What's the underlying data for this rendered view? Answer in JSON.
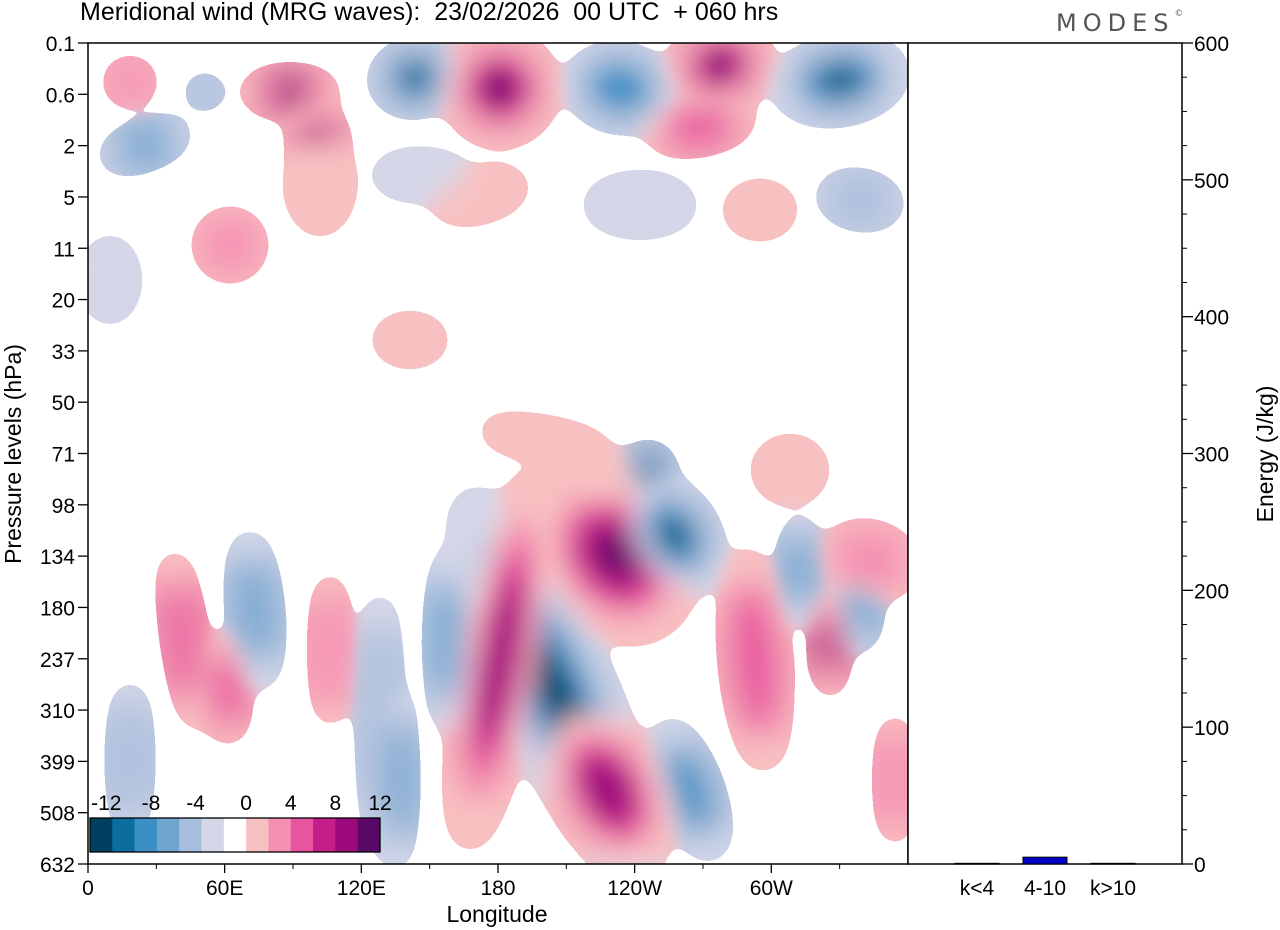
{
  "header": {
    "title": "Meridional wind (MRG waves):  23/02/2026  00 UTC  + 060 hrs",
    "logo": "MODES",
    "logo_mark": "©"
  },
  "chart_data": [
    {
      "type": "heatmap",
      "title": "Meridional wind (MRG waves)",
      "xlabel": "Longitude",
      "ylabel": "Pressure levels (hPa)",
      "x_ticks": [
        "0",
        "60E",
        "120E",
        "180",
        "120W",
        "60W"
      ],
      "x_range_deg_east": [
        0,
        360
      ],
      "y_ticks": [
        "0.1",
        "0.6",
        "2",
        "5",
        "11",
        "20",
        "33",
        "50",
        "71",
        "98",
        "134",
        "180",
        "237",
        "310",
        "399",
        "508",
        "632"
      ],
      "y_scale": "model levels, top 0.1 hPa to bottom 632 hPa",
      "colorbar": {
        "tick_labels": [
          "-12",
          "-8",
          "-4",
          "0",
          "4",
          "8",
          "12"
        ],
        "levels": [
          -14,
          -12,
          -10,
          -8,
          -6,
          -4,
          -2,
          2,
          4,
          6,
          8,
          10,
          12,
          14
        ],
        "colors": [
          "#003f5f",
          "#0a6e9e",
          "#3a8fc4",
          "#6fa6d0",
          "#a7bedc",
          "#d4d7e8",
          "#ffffff",
          "#f8c1c1",
          "#f58fb3",
          "#e8559e",
          "#c51d8a",
          "#9c0a7b",
          "#5a0868"
        ]
      },
      "features": [
        {
          "lon": 195,
          "level": "180-508",
          "value": -14,
          "desc": "strong negative column"
        },
        {
          "lon": 175,
          "level": "134-508",
          "value": 14,
          "desc": "strong positive column"
        },
        {
          "lon": 228,
          "level": "98-237",
          "value": 14
        },
        {
          "lon": 255,
          "level": "71-180",
          "value": -14
        },
        {
          "lon": 222,
          "level": "399-632",
          "value": 12
        },
        {
          "lon": 148,
          "level": "0.1-0.6",
          "value": -14
        },
        {
          "lon": 183,
          "level": "0.1-2",
          "value": 14
        },
        {
          "lon": 318,
          "level": "0.1-2",
          "value": -14
        },
        {
          "lon": 95,
          "level": "0.6",
          "value": 12
        }
      ]
    },
    {
      "type": "bar",
      "categories": [
        "k<4",
        "4-10",
        "k>10"
      ],
      "values": [
        0.5,
        5,
        0.5
      ],
      "ylabel": "Energy (J/kg)",
      "ylim": [
        0,
        600
      ],
      "y_ticks": [
        "0",
        "100",
        "200",
        "300",
        "400",
        "500",
        "600"
      ],
      "bar_color": "#0000c8"
    }
  ]
}
